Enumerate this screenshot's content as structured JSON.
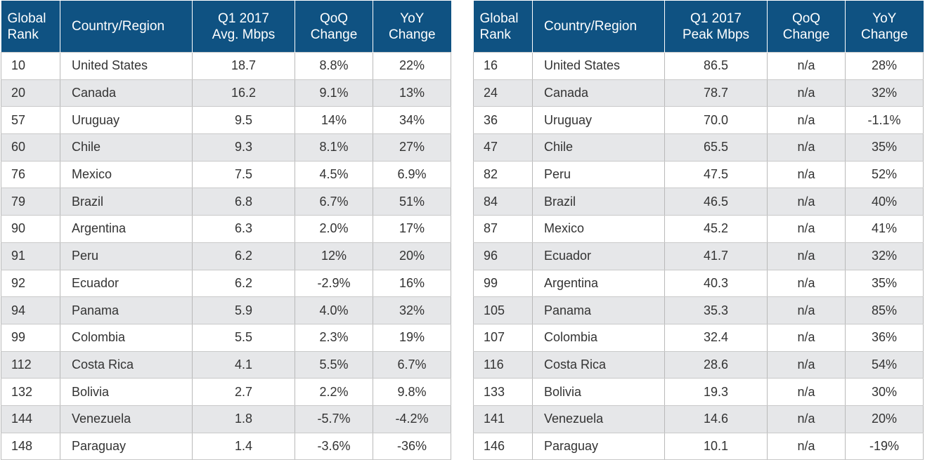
{
  "colors": {
    "header_bg": "#0f5282",
    "stripe_bg": "#e6e7e9"
  },
  "avg_table": {
    "headers": {
      "rank": "Global Rank",
      "country": "Country/Region",
      "metric": "Q1 2017 Avg. Mbps",
      "qoq": "QoQ Change",
      "yoy": "YoY Change"
    },
    "rows": [
      {
        "rank": "10",
        "country": "United States",
        "value": "18.7",
        "qoq": "8.8%",
        "yoy": "22%"
      },
      {
        "rank": "20",
        "country": "Canada",
        "value": "16.2",
        "qoq": "9.1%",
        "yoy": "13%"
      },
      {
        "rank": "57",
        "country": "Uruguay",
        "value": "9.5",
        "qoq": "14%",
        "yoy": "34%"
      },
      {
        "rank": "60",
        "country": "Chile",
        "value": "9.3",
        "qoq": "8.1%",
        "yoy": "27%"
      },
      {
        "rank": "76",
        "country": "Mexico",
        "value": "7.5",
        "qoq": "4.5%",
        "yoy": "6.9%"
      },
      {
        "rank": "79",
        "country": "Brazil",
        "value": "6.8",
        "qoq": "6.7%",
        "yoy": "51%"
      },
      {
        "rank": "90",
        "country": "Argentina",
        "value": "6.3",
        "qoq": "2.0%",
        "yoy": "17%"
      },
      {
        "rank": "91",
        "country": "Peru",
        "value": "6.2",
        "qoq": "12%",
        "yoy": "20%"
      },
      {
        "rank": "92",
        "country": "Ecuador",
        "value": "6.2",
        "qoq": "-2.9%",
        "yoy": "16%"
      },
      {
        "rank": "94",
        "country": "Panama",
        "value": "5.9",
        "qoq": "4.0%",
        "yoy": "32%"
      },
      {
        "rank": "99",
        "country": "Colombia",
        "value": "5.5",
        "qoq": "2.3%",
        "yoy": "19%"
      },
      {
        "rank": "112",
        "country": "Costa Rica",
        "value": "4.1",
        "qoq": "5.5%",
        "yoy": "6.7%"
      },
      {
        "rank": "132",
        "country": "Bolivia",
        "value": "2.7",
        "qoq": "2.2%",
        "yoy": "9.8%"
      },
      {
        "rank": "144",
        "country": "Venezuela",
        "value": "1.8",
        "qoq": "-5.7%",
        "yoy": "-4.2%"
      },
      {
        "rank": "148",
        "country": "Paraguay",
        "value": "1.4",
        "qoq": "-3.6%",
        "yoy": "-36%"
      }
    ]
  },
  "peak_table": {
    "headers": {
      "rank": "Global Rank",
      "country": "Country/Region",
      "metric": "Q1 2017 Peak Mbps",
      "qoq": "QoQ Change",
      "yoy": "YoY Change"
    },
    "rows": [
      {
        "rank": "16",
        "country": "United States",
        "value": "86.5",
        "qoq": "n/a",
        "yoy": "28%"
      },
      {
        "rank": "24",
        "country": "Canada",
        "value": "78.7",
        "qoq": "n/a",
        "yoy": "32%"
      },
      {
        "rank": "36",
        "country": "Uruguay",
        "value": "70.0",
        "qoq": "n/a",
        "yoy": "-1.1%"
      },
      {
        "rank": "47",
        "country": "Chile",
        "value": "65.5",
        "qoq": "n/a",
        "yoy": "35%"
      },
      {
        "rank": "82",
        "country": "Peru",
        "value": "47.5",
        "qoq": "n/a",
        "yoy": "52%"
      },
      {
        "rank": "84",
        "country": "Brazil",
        "value": "46.5",
        "qoq": "n/a",
        "yoy": "40%"
      },
      {
        "rank": "87",
        "country": "Mexico",
        "value": "45.2",
        "qoq": "n/a",
        "yoy": "41%"
      },
      {
        "rank": "96",
        "country": "Ecuador",
        "value": "41.7",
        "qoq": "n/a",
        "yoy": "32%"
      },
      {
        "rank": "99",
        "country": "Argentina",
        "value": "40.3",
        "qoq": "n/a",
        "yoy": "35%"
      },
      {
        "rank": "105",
        "country": "Panama",
        "value": "35.3",
        "qoq": "n/a",
        "yoy": "85%"
      },
      {
        "rank": "107",
        "country": "Colombia",
        "value": "32.4",
        "qoq": "n/a",
        "yoy": "36%"
      },
      {
        "rank": "116",
        "country": "Costa Rica",
        "value": "28.6",
        "qoq": "n/a",
        "yoy": "54%"
      },
      {
        "rank": "133",
        "country": "Bolivia",
        "value": "19.3",
        "qoq": "n/a",
        "yoy": "30%"
      },
      {
        "rank": "141",
        "country": "Venezuela",
        "value": "14.6",
        "qoq": "n/a",
        "yoy": "20%"
      },
      {
        "rank": "146",
        "country": "Paraguay",
        "value": "10.1",
        "qoq": "n/a",
        "yoy": "-19%"
      }
    ]
  }
}
